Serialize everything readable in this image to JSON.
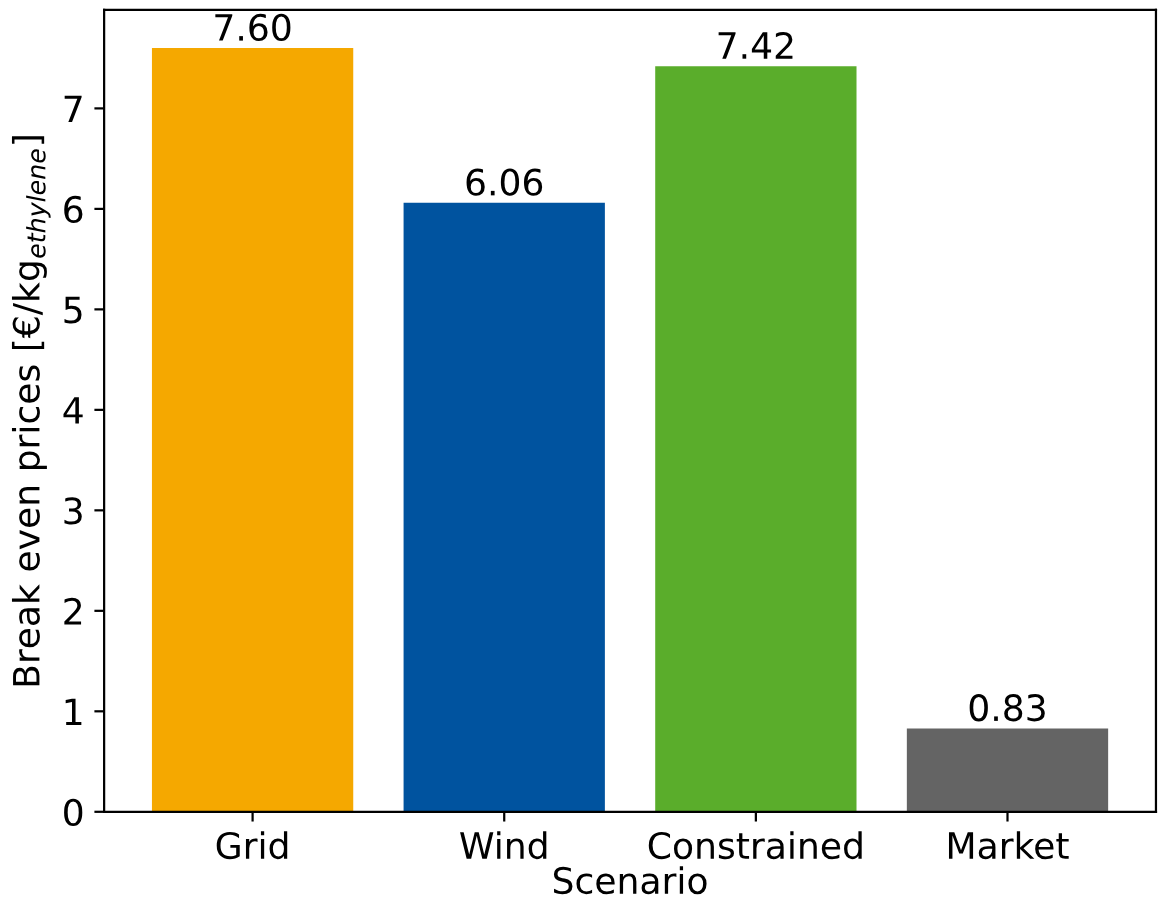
{
  "chart_data": {
    "type": "bar",
    "xlabel": "Scenario",
    "ylabel": "Break even prices [€/kg$_{ethylene}$]",
    "categories": [
      "Grid",
      "Wind",
      "Constrained",
      "Market"
    ],
    "values": [
      7.6,
      6.06,
      7.42,
      0.83
    ],
    "colors": [
      "#f5a800",
      "#00539f",
      "#5aad2b",
      "#646464"
    ],
    "value_labels": [
      "7.60",
      "6.06",
      "7.42",
      "0.83"
    ],
    "ylim": [
      0,
      7.98
    ],
    "yticks": [
      0,
      1,
      2,
      3,
      4,
      5,
      6,
      7
    ],
    "grid": false
  }
}
